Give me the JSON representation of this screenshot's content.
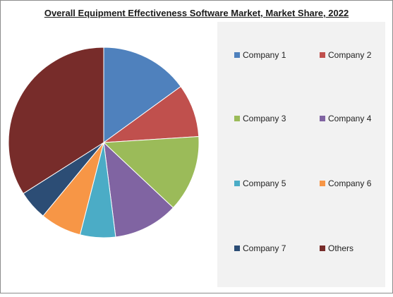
{
  "chart_data": {
    "type": "pie",
    "title": "Overall Equipment Effectiveness Software Market, Market Share, 2022",
    "categories": [
      "Company 1",
      "Company 2",
      "Company 3",
      "Company 4",
      "Company 5",
      "Company 6",
      "Company 7",
      "Others"
    ],
    "values": [
      15,
      9,
      13,
      11,
      6,
      7,
      5,
      34
    ],
    "colors": [
      "#4f81bd",
      "#c0504d",
      "#9bbb59",
      "#8064a2",
      "#4bacc6",
      "#f79646",
      "#2c4d75",
      "#772c2a"
    ],
    "legend": "right"
  }
}
